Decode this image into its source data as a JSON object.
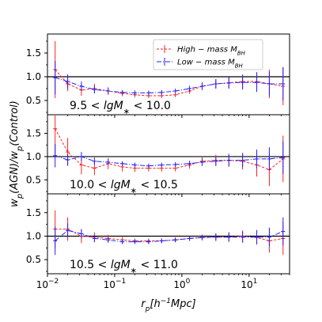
{
  "chart_data": [
    {
      "type": "line",
      "panel": 1,
      "annotation": "9.5 < lgM* < 10.0",
      "x": [
        0.013,
        0.02,
        0.032,
        0.05,
        0.08,
        0.13,
        0.2,
        0.32,
        0.5,
        0.8,
        1.3,
        2.0,
        3.2,
        5.0,
        8.0,
        13,
        20,
        32
      ],
      "series": [
        {
          "name": "High-mass M_BH",
          "color": "#ff2020",
          "values": [
            1.15,
            0.85,
            0.72,
            0.75,
            0.7,
            0.65,
            0.62,
            0.6,
            0.6,
            0.62,
            0.7,
            0.8,
            0.85,
            0.87,
            0.9,
            0.9,
            0.85,
            0.8
          ],
          "errors": [
            0.6,
            0.15,
            0.12,
            0.1,
            0.08,
            0.06,
            0.05,
            0.05,
            0.05,
            0.05,
            0.06,
            0.08,
            0.1,
            0.12,
            0.15,
            0.2,
            0.3,
            0.4
          ]
        },
        {
          "name": "Low-mass M_BH",
          "color": "#2020ff",
          "values": [
            0.98,
            0.9,
            0.8,
            0.73,
            0.7,
            0.67,
            0.66,
            0.66,
            0.67,
            0.7,
            0.75,
            0.8,
            0.85,
            0.87,
            0.88,
            0.88,
            0.85,
            0.85
          ],
          "errors": [
            0.35,
            0.15,
            0.1,
            0.08,
            0.06,
            0.05,
            0.05,
            0.05,
            0.05,
            0.05,
            0.06,
            0.08,
            0.1,
            0.12,
            0.15,
            0.2,
            0.25,
            0.35
          ]
        }
      ],
      "reference_line": 1.0,
      "yticks": [
        0.5,
        1.0,
        1.5
      ],
      "ylim": [
        0.2,
        1.9
      ]
    },
    {
      "type": "line",
      "panel": 2,
      "annotation": "10.0 < lgM* < 10.5",
      "x": [
        0.013,
        0.02,
        0.032,
        0.05,
        0.08,
        0.13,
        0.2,
        0.32,
        0.5,
        0.8,
        1.3,
        2.0,
        3.2,
        5.0,
        8.0,
        13,
        20,
        32
      ],
      "series": [
        {
          "name": "High-mass M_BH",
          "color": "#ff2020",
          "values": [
            1.6,
            1.1,
            0.82,
            0.75,
            0.85,
            0.78,
            0.75,
            0.75,
            0.75,
            0.75,
            0.82,
            0.9,
            0.92,
            0.92,
            0.9,
            0.82,
            0.72,
            0.95
          ],
          "errors": [
            0.6,
            0.3,
            0.2,
            0.15,
            0.12,
            0.1,
            0.08,
            0.07,
            0.07,
            0.07,
            0.08,
            0.1,
            0.12,
            0.14,
            0.18,
            0.25,
            0.35,
            0.5
          ]
        },
        {
          "name": "Low-mass M_BH",
          "color": "#2020ff",
          "values": [
            1.02,
            0.93,
            1.0,
            0.9,
            0.88,
            0.85,
            0.82,
            0.8,
            0.82,
            0.83,
            0.85,
            0.88,
            0.9,
            0.92,
            0.92,
            0.95,
            0.95,
            0.98
          ],
          "errors": [
            0.25,
            0.12,
            0.1,
            0.08,
            0.06,
            0.05,
            0.05,
            0.05,
            0.05,
            0.05,
            0.06,
            0.08,
            0.1,
            0.12,
            0.15,
            0.2,
            0.25,
            0.35
          ]
        }
      ],
      "reference_line": 1.0,
      "yticks": [
        0.5,
        1.0,
        1.5
      ],
      "ylim": [
        0.2,
        1.9
      ]
    },
    {
      "type": "line",
      "panel": 3,
      "annotation": "10.5 < lgM* < 11.0",
      "x": [
        0.013,
        0.02,
        0.032,
        0.05,
        0.08,
        0.13,
        0.2,
        0.32,
        0.5,
        0.8,
        1.3,
        2.0,
        3.2,
        5.0,
        8.0,
        13,
        20,
        32
      ],
      "series": [
        {
          "name": "High-mass M_BH",
          "color": "#ff2020",
          "values": [
            1.15,
            1.15,
            1.0,
            0.98,
            0.95,
            0.92,
            0.9,
            0.9,
            0.9,
            0.92,
            0.95,
            0.97,
            0.98,
            0.98,
            1.0,
            0.97,
            0.9,
            0.95
          ],
          "errors": [
            0.4,
            0.25,
            0.15,
            0.1,
            0.08,
            0.06,
            0.05,
            0.05,
            0.05,
            0.05,
            0.05,
            0.06,
            0.08,
            0.1,
            0.12,
            0.15,
            0.25,
            0.35
          ]
        },
        {
          "name": "Low-mass M_BH",
          "color": "#2020ff",
          "values": [
            0.9,
            1.12,
            1.05,
            0.95,
            0.92,
            0.88,
            0.88,
            0.88,
            0.9,
            0.92,
            0.95,
            0.97,
            0.98,
            0.98,
            0.98,
            0.98,
            0.98,
            1.1
          ],
          "errors": [
            0.3,
            0.15,
            0.1,
            0.08,
            0.06,
            0.05,
            0.05,
            0.05,
            0.05,
            0.05,
            0.05,
            0.06,
            0.08,
            0.1,
            0.12,
            0.15,
            0.2,
            0.3
          ]
        }
      ],
      "reference_line": 1.0,
      "yticks": [
        0.5,
        1.0,
        1.5
      ],
      "ylim": [
        0.2,
        1.9
      ]
    }
  ],
  "axes": {
    "xlabel": "r_p[h^-1 Mpc]",
    "ylabel": "w_p(AGN)/w_p(Control)",
    "xscale": "log",
    "xlim": [
      0.01,
      40
    ],
    "xticks": [
      {
        "value": 0.01,
        "base": "10",
        "exp": "−2"
      },
      {
        "value": 0.1,
        "base": "10",
        "exp": "−1"
      },
      {
        "value": 1,
        "base": "10",
        "exp": "0"
      },
      {
        "value": 10,
        "base": "10",
        "exp": "1"
      }
    ],
    "ytick_labels": [
      "0.5",
      "1.0",
      "1.5"
    ]
  },
  "legend": {
    "placement": "top-right of top panel",
    "entries": [
      {
        "prefix": "High − mass M",
        "sub": "BH",
        "color": "#ff2020"
      },
      {
        "prefix": "Low − mass M",
        "sub": "BH",
        "color": "#2020ff"
      }
    ]
  }
}
